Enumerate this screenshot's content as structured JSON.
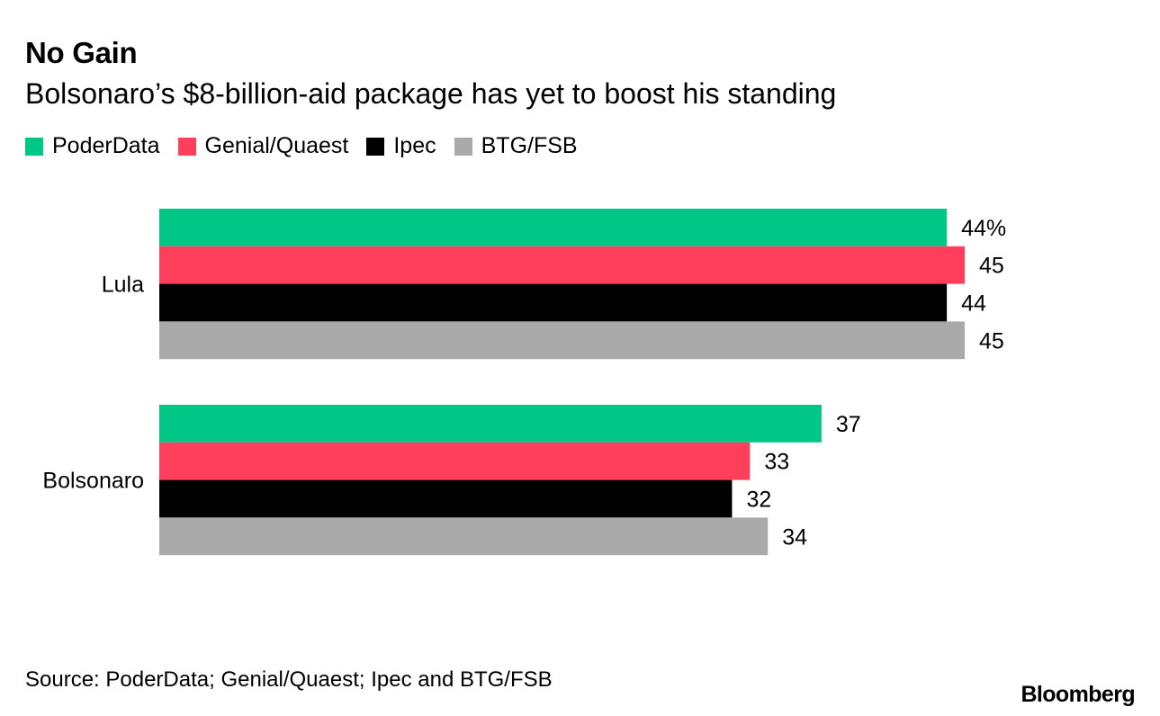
{
  "title": "No Gain",
  "subtitle": "Bolsonaro’s $8-billion-aid package has yet to boost his standing",
  "source": "Source: PoderData; Genial/Quaest; Ipec and BTG/FSB",
  "brand": "Bloomberg",
  "chart_data": {
    "type": "bar",
    "orientation": "horizontal",
    "title": "No Gain",
    "subtitle": "Bolsonaro’s $8-billion-aid package has yet to boost his standing",
    "categories": [
      "Lula",
      "Bolsonaro"
    ],
    "series": [
      {
        "name": "PoderData",
        "color": "#00c785",
        "values": [
          44,
          37
        ]
      },
      {
        "name": "Genial/Quaest",
        "color": "#ff3f5b",
        "values": [
          45,
          33
        ]
      },
      {
        "name": "Ipec",
        "color": "#000000",
        "values": [
          44,
          32
        ]
      },
      {
        "name": "BTG/FSB",
        "color": "#aaaaaa",
        "values": [
          45,
          34
        ]
      }
    ],
    "data_labels": [
      [
        "44%",
        "45",
        "44",
        "45"
      ],
      [
        "37",
        "33",
        "32",
        "34"
      ]
    ],
    "xlim": [
      0,
      45
    ],
    "grid": false,
    "legend_position": "top-left",
    "xlabel": "",
    "ylabel": ""
  }
}
